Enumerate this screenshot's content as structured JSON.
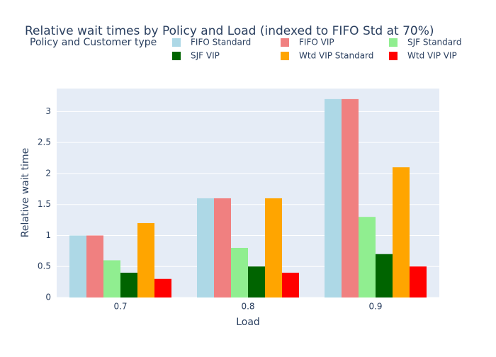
{
  "chart_data": {
    "type": "bar",
    "title": "Relative wait times by Policy and Load (indexed to FIFO Std at 70%)",
    "legend_title": "Policy and Customer type",
    "x_label": "Load",
    "y_label": "Relative wait time",
    "categories": [
      "0.7",
      "0.8",
      "0.9"
    ],
    "series": [
      {
        "name": "FIFO Standard",
        "color": "#add8e6",
        "values": [
          1,
          1.6,
          3.2
        ]
      },
      {
        "name": "FIFO VIP",
        "color": "#f08080",
        "values": [
          1,
          1.6,
          3.2
        ]
      },
      {
        "name": "SJF Standard",
        "color": "#90ee90",
        "values": [
          0.6,
          0.8,
          1.3
        ]
      },
      {
        "name": "SJF VIP",
        "color": "#006400",
        "values": [
          0.4,
          0.5,
          0.7
        ]
      },
      {
        "name": "Wtd VIP Standard",
        "color": "#ffa500",
        "values": [
          1.2,
          1.6,
          2.1
        ]
      },
      {
        "name": "Wtd VIP VIP",
        "color": "#ff0000",
        "values": [
          0.3,
          0.4,
          0.5
        ]
      }
    ],
    "ylim": [
      0,
      3.37
    ],
    "yticks": [
      0,
      0.5,
      1,
      1.5,
      2,
      2.5,
      3
    ],
    "grid": true
  }
}
